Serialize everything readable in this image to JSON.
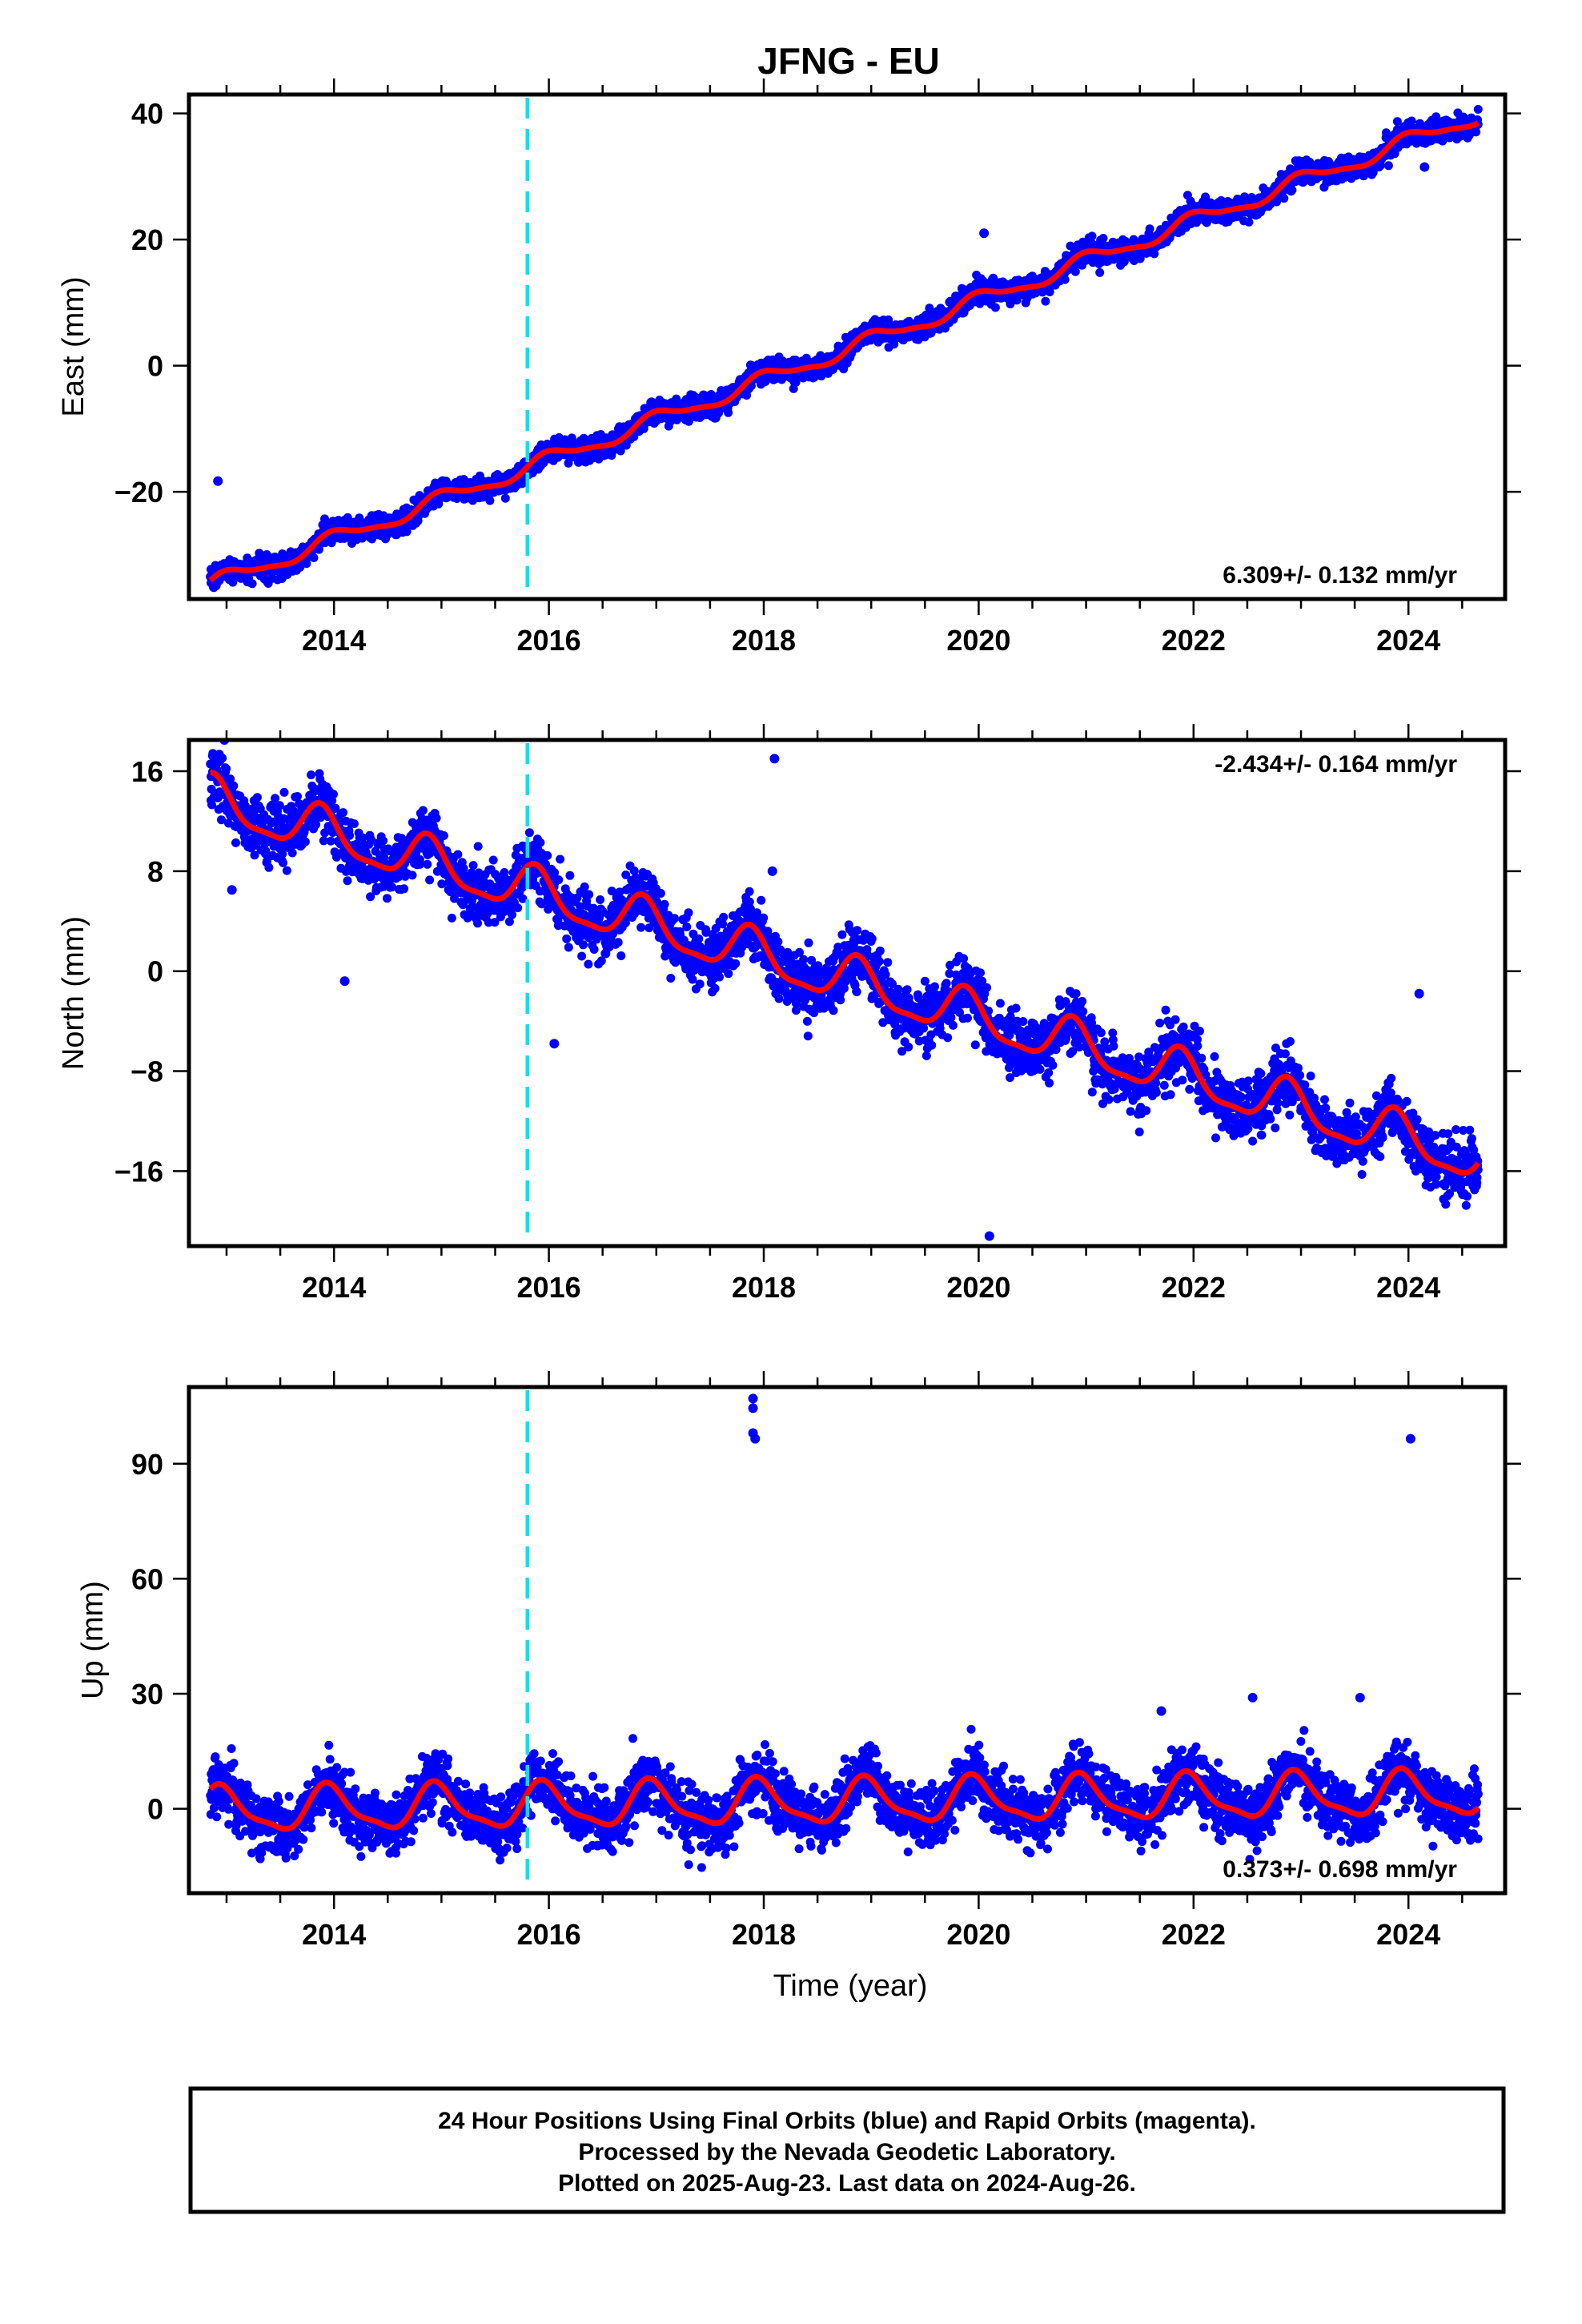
{
  "title": "JFNG - EU",
  "xlabel": "Time (year)",
  "footer": {
    "line1": "24 Hour Positions Using Final Orbits (blue) and Rapid Orbits (magenta).",
    "line2": "Processed by the Nevada Geodetic Laboratory.",
    "line3": "Plotted on 2025-Aug-23. Last data on 2024-Aug-26."
  },
  "colors": {
    "points": "#0000ff",
    "model": "#ff0000",
    "event_line": "#00e5ee",
    "frame": "#000000"
  },
  "chart_data": [
    {
      "type": "scatter",
      "component": "east",
      "ylabel": "East (mm)",
      "rate_label": "6.309+/- 0.132 mm/yr",
      "rate_position": "bottom-right",
      "xlim": [
        2012.65,
        2024.9
      ],
      "ylim": [
        -37,
        43
      ],
      "x_ticks": [
        2014,
        2016,
        2018,
        2020,
        2022,
        2024
      ],
      "x_tick_labels": [
        "2014",
        "2016",
        "2018",
        "2020",
        "2022",
        "2024"
      ],
      "y_ticks": [
        -20,
        0,
        20,
        40
      ],
      "y_tick_labels": [
        "−20",
        "0",
        "20",
        "40"
      ],
      "event_line_x": 2015.8,
      "data_span": [
        2012.85,
        2024.65
      ],
      "model": {
        "offset": -34.8,
        "t0": 2012.85,
        "rate": 6.309,
        "seasonal_amp": 1.2,
        "seasonal_phase": 0.5
      },
      "scatter_sigma": 0.9,
      "outliers": [
        {
          "x": 2012.92,
          "y": -18.3
        },
        {
          "x": 2020.05,
          "y": 21.0
        },
        {
          "x": 2024.15,
          "y": 31.5
        }
      ],
      "grid": false
    },
    {
      "type": "scatter",
      "component": "north",
      "ylabel": "North (mm)",
      "rate_label": "-2.434+/- 0.164 mm/yr",
      "rate_position": "top-right",
      "xlim": [
        2012.65,
        2024.9
      ],
      "ylim": [
        -22,
        18.5
      ],
      "x_ticks": [
        2014,
        2016,
        2018,
        2020,
        2022,
        2024
      ],
      "x_tick_labels": [
        "2014",
        "2016",
        "2018",
        "2020",
        "2022",
        "2024"
      ],
      "y_ticks": [
        -16,
        -8,
        0,
        8,
        16
      ],
      "y_tick_labels": [
        "−16",
        "−8",
        "0",
        "8",
        "16"
      ],
      "event_line_x": 2015.8,
      "data_span": [
        2012.85,
        2024.65
      ],
      "model": {
        "offset": 13.6,
        "t0": 2012.85,
        "rate": -2.434,
        "seasonal_amp": 1.8,
        "seasonal_phase": 1.4
      },
      "scatter_sigma": 1.2,
      "outliers": [
        {
          "x": 2012.98,
          "y": 18.5
        },
        {
          "x": 2013.05,
          "y": 6.5
        },
        {
          "x": 2014.1,
          "y": -0.8
        },
        {
          "x": 2016.05,
          "y": -5.8
        },
        {
          "x": 2018.1,
          "y": 17.0
        },
        {
          "x": 2018.08,
          "y": 8.0
        },
        {
          "x": 2020.1,
          "y": -21.2
        },
        {
          "x": 2024.1,
          "y": -1.8
        }
      ],
      "grid": false
    },
    {
      "type": "scatter",
      "component": "up",
      "ylabel": "Up (mm)",
      "rate_label": "0.373+/- 0.698 mm/yr",
      "rate_position": "bottom-right",
      "xlim": [
        2012.65,
        2024.9
      ],
      "ylim": [
        -22,
        110
      ],
      "x_ticks": [
        2014,
        2016,
        2018,
        2020,
        2022,
        2024
      ],
      "x_tick_labels": [
        "2014",
        "2016",
        "2018",
        "2020",
        "2022",
        "2024"
      ],
      "y_ticks": [
        0,
        30,
        60,
        90
      ],
      "y_tick_labels": [
        "0",
        "30",
        "60",
        "90"
      ],
      "event_line_x": 2015.8,
      "data_span": [
        2012.85,
        2024.65
      ],
      "model": {
        "offset": -0.5,
        "t0": 2012.85,
        "rate": 0.373,
        "seasonal_amp": 5.5,
        "seasonal_phase": 0.9
      },
      "scatter_sigma": 3.8,
      "outliers": [
        {
          "x": 2017.9,
          "y": 107.0
        },
        {
          "x": 2017.9,
          "y": 104.5
        },
        {
          "x": 2017.9,
          "y": 98.0
        },
        {
          "x": 2017.92,
          "y": 96.5
        },
        {
          "x": 2024.02,
          "y": 96.5
        },
        {
          "x": 2021.7,
          "y": 25.5
        },
        {
          "x": 2022.55,
          "y": 29.0
        },
        {
          "x": 2023.55,
          "y": 29.0
        }
      ],
      "grid": false
    }
  ]
}
